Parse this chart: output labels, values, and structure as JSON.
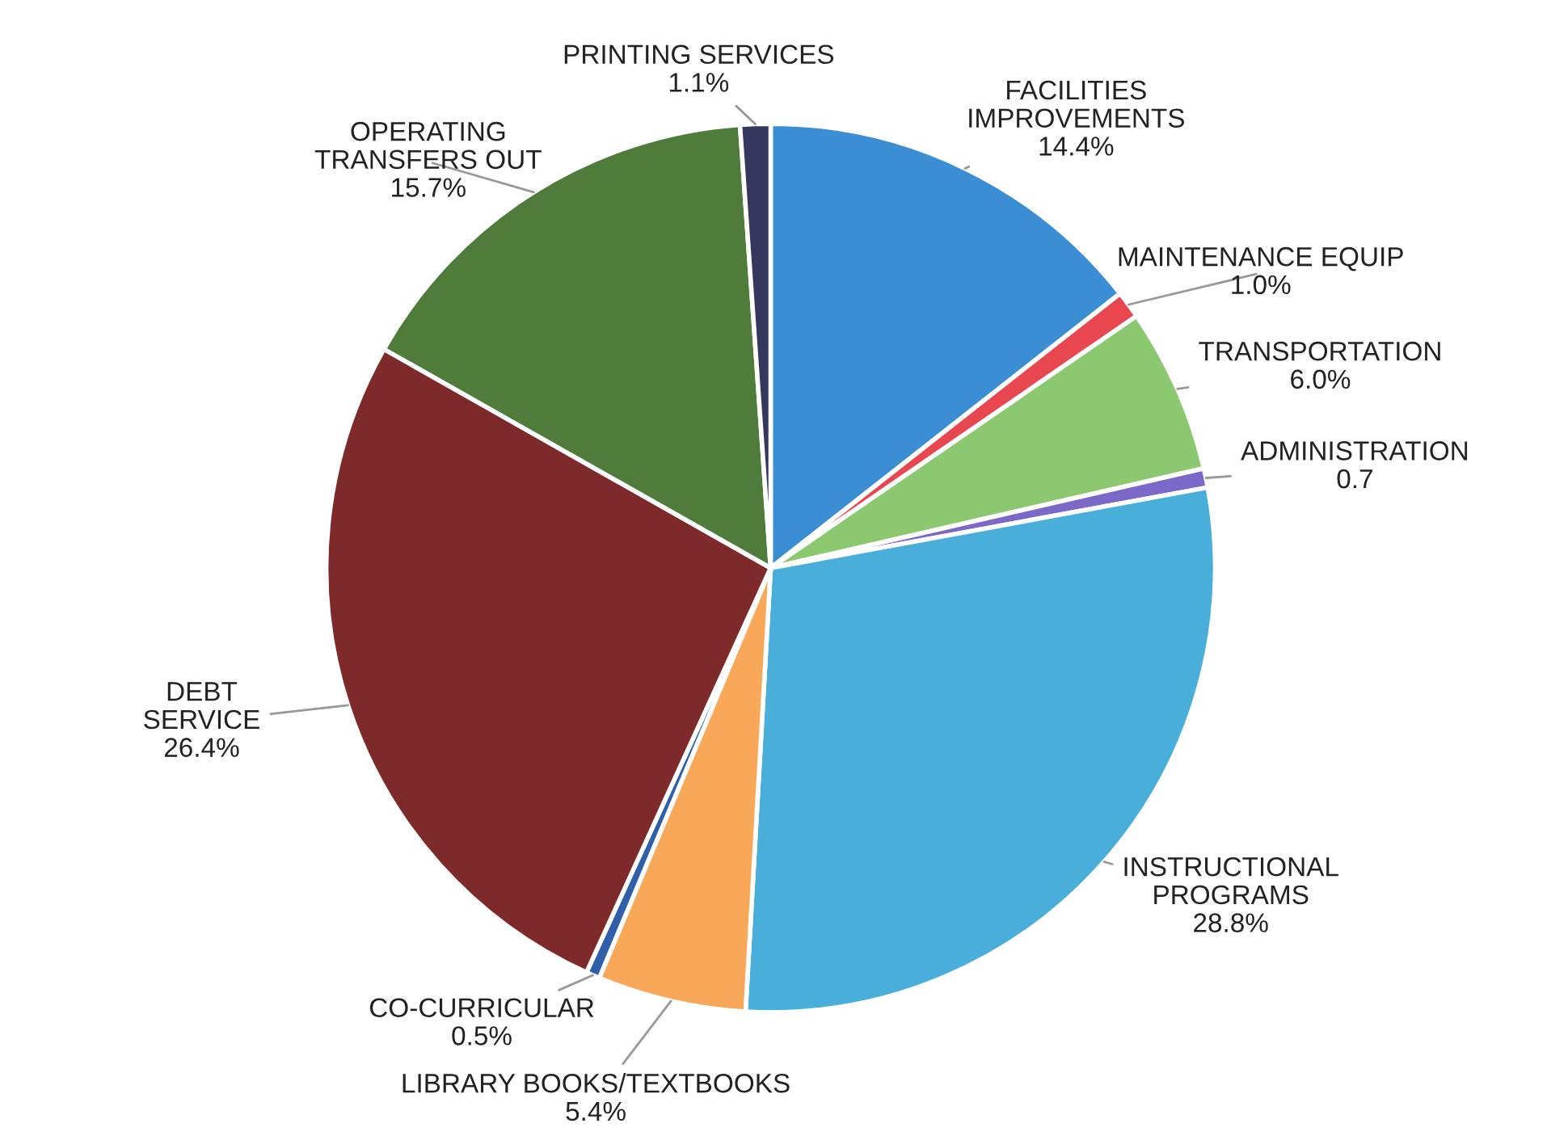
{
  "chart_data": {
    "type": "pie",
    "categories": [
      "FACILITIES\nIMPROVEMENTS",
      "MAINTENANCE EQUIP",
      "TRANSPORTATION",
      "ADMINISTRATION",
      "INSTRUCTIONAL\nPROGRAMS",
      "LIBRARY BOOKS/TEXTBOOKS",
      "CO-CURRICULAR",
      "DEBT\nSERVICE",
      "OPERATING\nTRANSFERS OUT",
      "PRINTING SERVICES"
    ],
    "values": [
      14.4,
      1.0,
      6.0,
      0.7,
      28.8,
      5.4,
      0.5,
      26.4,
      15.7,
      1.1
    ],
    "value_labels": [
      "14.4%",
      "1.0%",
      "6.0%",
      "0.7",
      "28.8%",
      "5.4%",
      "0.5%",
      "26.4%",
      "15.7%",
      "1.1%"
    ],
    "colors": [
      "#3b8ed4",
      "#e8474f",
      "#8cc870",
      "#7b68c8",
      "#4aaedb",
      "#f9a85a",
      "#2e5fa8",
      "#7f2a2a",
      "#4f7c3a",
      "#35375f"
    ],
    "legend": false
  }
}
